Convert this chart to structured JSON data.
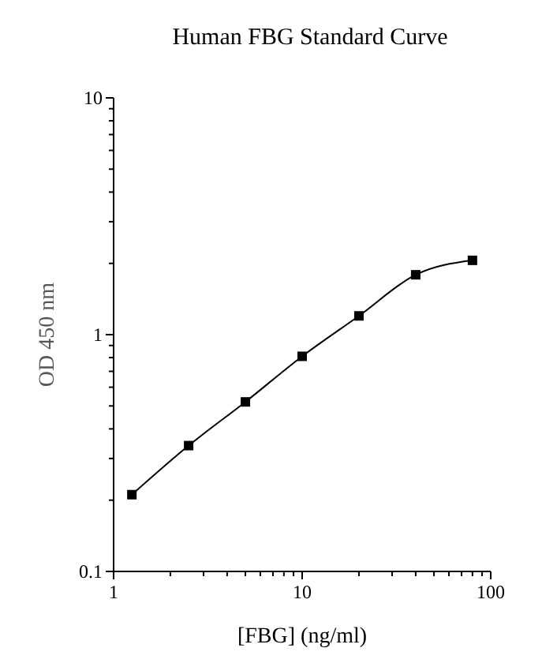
{
  "chart_data": {
    "type": "line",
    "title": "Human FBG Standard Curve",
    "xlabel": "[FBG] (ng/ml)",
    "ylabel": "OD 450 nm",
    "log": "xy",
    "marker": "square",
    "line_style": "solid",
    "x": [
      1.25,
      2.5,
      5,
      10,
      20,
      40,
      80
    ],
    "series": [
      {
        "color": "#000000",
        "values": [
          0.211,
          0.34,
          0.52,
          0.81,
          1.2,
          1.79,
          2.06
        ]
      }
    ],
    "xlim": [
      1,
      100
    ],
    "xticks": [
      1,
      {
        "value": 2,
        "label": null
      },
      {
        "value": 3,
        "label": null
      },
      {
        "value": 4,
        "label": null
      },
      {
        "value": 5,
        "label": null
      },
      {
        "value": 6,
        "label": null
      },
      {
        "value": 7,
        "label": null
      },
      {
        "value": 8,
        "label": null
      },
      {
        "value": 9,
        "label": null
      },
      10,
      {
        "value": 20,
        "label": null
      },
      {
        "value": 30,
        "label": null
      },
      {
        "value": 40,
        "label": null
      },
      {
        "value": 50,
        "label": null
      },
      {
        "value": 60,
        "label": null
      },
      {
        "value": 70,
        "label": null
      },
      {
        "value": 80,
        "label": null
      },
      {
        "value": 90,
        "label": null
      },
      100
    ],
    "ylim": [
      0.1,
      10
    ],
    "yticks": [
      0.1,
      {
        "value": 0.2,
        "label": null
      },
      {
        "value": 0.3,
        "label": null
      },
      {
        "value": 0.4,
        "label": null
      },
      {
        "value": 0.5,
        "label": null
      },
      {
        "value": 0.6,
        "label": null
      },
      {
        "value": 0.7,
        "label": null
      },
      {
        "value": 0.8,
        "label": null
      },
      {
        "value": 0.9,
        "label": null
      },
      1,
      {
        "value": 2,
        "label": null
      },
      {
        "value": 3,
        "label": null
      },
      {
        "value": 4,
        "label": null
      },
      {
        "value": 5,
        "label": null
      },
      {
        "value": 6,
        "label": null
      },
      {
        "value": 7,
        "label": null
      },
      {
        "value": 8,
        "label": null
      },
      {
        "value": 9,
        "label": null
      },
      10
    ]
  }
}
